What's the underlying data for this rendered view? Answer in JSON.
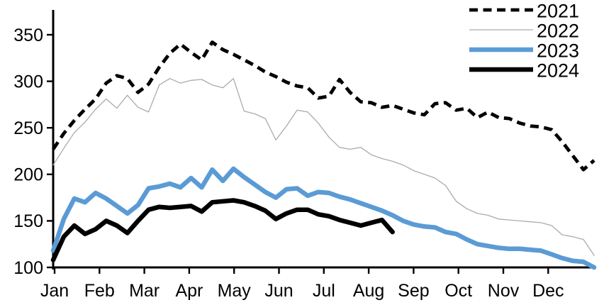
{
  "chart_data": {
    "type": "line",
    "title": "",
    "xlabel": "",
    "ylabel": "",
    "x_axis": {
      "tick_labels": [
        "Jan",
        "Feb",
        "Mar",
        "Apr",
        "May",
        "Jun",
        "Jul",
        "Aug",
        "Sep",
        "Oct",
        "Nov",
        "Dec"
      ],
      "sampling": "weekly (52 points per year)"
    },
    "y_axis": {
      "tick_labels": [
        "100",
        "150",
        "200",
        "250",
        "300",
        "350"
      ],
      "tick_values": [
        100,
        150,
        200,
        250,
        300,
        350
      ],
      "range": [
        100,
        377
      ],
      "grid": "off"
    },
    "legend": {
      "position": "top-right",
      "entries": [
        "2021",
        "2022",
        "2023",
        "2024"
      ]
    },
    "series": [
      {
        "name": "2021",
        "color": "#000000",
        "line_style": "dashed",
        "line_width": 4.8,
        "values": [
          227,
          244,
          258,
          270,
          281,
          298,
          306,
          303,
          288,
          297,
          315,
          330,
          340,
          331,
          323,
          342,
          334,
          329,
          323,
          317,
          310,
          305,
          299,
          295,
          293,
          282,
          284,
          302,
          288,
          278,
          277,
          272,
          274,
          270,
          266,
          264,
          276,
          277,
          269,
          271,
          261,
          267,
          261,
          260,
          255,
          252,
          251,
          248,
          235,
          220,
          205,
          215
        ]
      },
      {
        "name": "2022",
        "color": "#ABABAB",
        "line_style": "solid",
        "line_width": 1.3,
        "values": [
          210,
          228,
          245,
          256,
          270,
          281,
          271,
          285,
          272,
          267,
          296,
          303,
          298,
          301,
          302,
          296,
          293,
          303,
          268,
          265,
          260,
          237,
          252,
          269,
          267,
          255,
          240,
          229,
          227,
          229,
          221,
          217,
          214,
          210,
          204,
          200,
          196,
          188,
          171,
          163,
          158,
          156,
          152,
          151,
          150,
          149,
          148,
          145,
          135,
          133,
          130,
          113
        ]
      },
      {
        "name": "2023",
        "color": "#5B9BD5",
        "line_style": "solid",
        "line_width": 6.5,
        "values": [
          118,
          152,
          174,
          170,
          180,
          174,
          166,
          158,
          167,
          185,
          187,
          190,
          186,
          196,
          186,
          205,
          193,
          206,
          197,
          189,
          181,
          175,
          184,
          185,
          177,
          181,
          180,
          176,
          173,
          169,
          165,
          161,
          156,
          150,
          146,
          144,
          143,
          138,
          136,
          130,
          125,
          123,
          121,
          120,
          120,
          119,
          118,
          114,
          110,
          107,
          106,
          100
        ]
      },
      {
        "name": "2024",
        "color": "#000000",
        "line_style": "solid",
        "line_width": 6.5,
        "values": [
          108,
          133,
          145,
          136,
          141,
          150,
          145,
          137,
          150,
          162,
          165,
          164,
          165,
          166,
          160,
          170,
          171,
          172,
          170,
          166,
          161,
          152,
          158,
          162,
          162,
          157,
          155,
          151,
          148,
          145,
          148,
          151,
          138
        ]
      }
    ]
  }
}
